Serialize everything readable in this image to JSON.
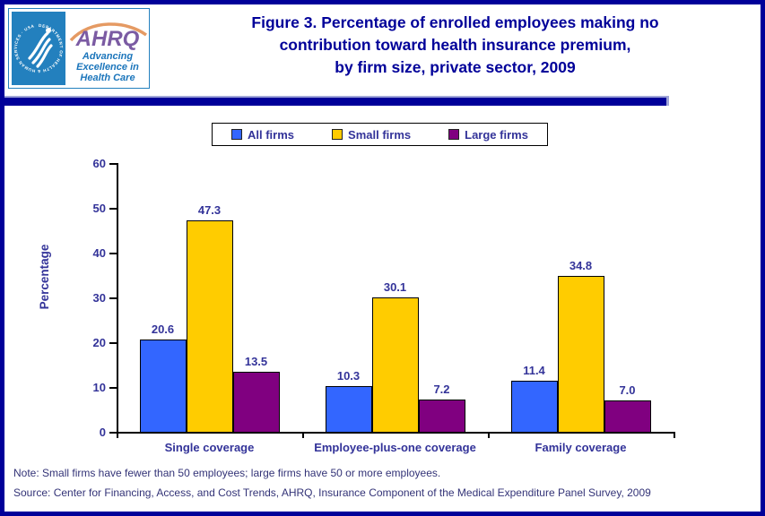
{
  "window": {
    "border_color": "#000099",
    "background": "#FFFFFF"
  },
  "header": {
    "logo": {
      "acronym": "AHRQ",
      "seal_text": "DEPARTMENT OF HEALTH & HUMAN SERVICES · USA",
      "tagline": [
        "Advancing",
        "Excellence in",
        "Health Care"
      ]
    },
    "title_lines": [
      "Figure 3. Percentage of enrolled employees making no",
      "contribution toward health insurance premium,",
      "by firm size, private sector, 2009"
    ]
  },
  "chart_data": {
    "type": "bar",
    "title": "Figure 3. Percentage of enrolled employees making no contribution toward health insurance premium, by firm size, private sector, 2009",
    "categories": [
      "Single coverage",
      "Employee-plus-one coverage",
      "Family coverage"
    ],
    "series": [
      {
        "name": "All firms",
        "color": "#3366FF",
        "values": [
          20.6,
          10.3,
          11.4
        ]
      },
      {
        "name": "Small firms",
        "color": "#FFCC00",
        "values": [
          47.3,
          30.1,
          34.8
        ]
      },
      {
        "name": "Large firms",
        "color": "#800080",
        "values": [
          13.5,
          7.2,
          7.0
        ]
      }
    ],
    "xlabel": "",
    "ylabel": "Percentage",
    "ylim": [
      0,
      60
    ],
    "yticks": [
      0,
      10,
      20,
      30,
      40,
      50,
      60
    ],
    "grid": false,
    "legend_position": "top-center",
    "value_labels": true,
    "bar_border_color": "#000000",
    "label_color": "#333399"
  },
  "footer": {
    "note": "Note: Small firms have fewer than 50 employees; large firms have 50 or more employees.",
    "source": "Source: Center for Financing, Access, and Cost Trends, AHRQ, Insurance Component of the Medical Expenditure Panel Survey, 2009"
  }
}
